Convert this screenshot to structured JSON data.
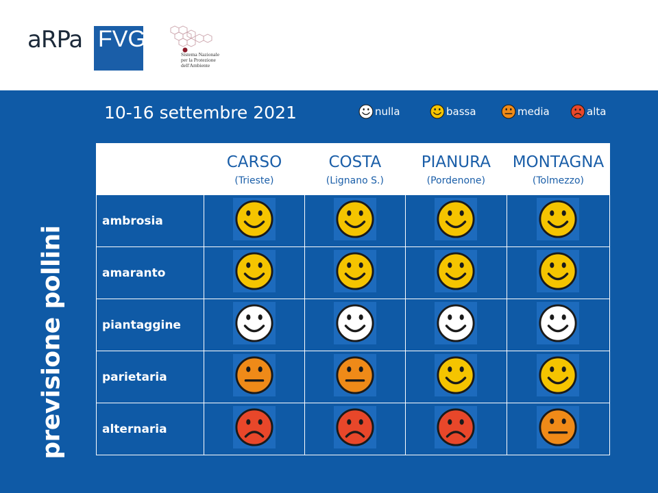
{
  "header": {
    "logo_left": "aRPa",
    "logo_right": "FVG",
    "partner_lines": [
      "Sistema Nazionale",
      "per la Protezione",
      "dell'Ambiente"
    ]
  },
  "title": {
    "date_range": "10-16 settembre 2021",
    "vertical_label": "previsione pollini"
  },
  "legend": [
    {
      "level": "nulla",
      "label": "nulla",
      "color": "#ffffff"
    },
    {
      "level": "bassa",
      "label": "bassa",
      "color": "#f5c400"
    },
    {
      "level": "media",
      "label": "media",
      "color": "#ef8a18"
    },
    {
      "level": "alta",
      "label": "alta",
      "color": "#e8472a"
    }
  ],
  "zones": [
    {
      "name": "CARSO",
      "place": "(Trieste)"
    },
    {
      "name": "COSTA",
      "place": "(Lignano S.)"
    },
    {
      "name": "PIANURA",
      "place": "(Pordenone)"
    },
    {
      "name": "MONTAGNA",
      "place": "(Tolmezzo)"
    }
  ],
  "pollens": [
    {
      "name": "ambrosia",
      "levels": [
        "bassa",
        "bassa",
        "bassa",
        "bassa"
      ]
    },
    {
      "name": "amaranto",
      "levels": [
        "bassa",
        "bassa",
        "bassa",
        "bassa"
      ]
    },
    {
      "name": "piantaggine",
      "levels": [
        "nulla",
        "nulla",
        "nulla",
        "nulla"
      ]
    },
    {
      "name": "parietaria",
      "levels": [
        "media",
        "media",
        "bassa",
        "bassa"
      ]
    },
    {
      "name": "alternaria",
      "levels": [
        "alta",
        "alta",
        "alta",
        "media"
      ]
    }
  ],
  "colors": {
    "background_blue": "#0f5aa6",
    "face_outline": "#1a1a1a"
  }
}
